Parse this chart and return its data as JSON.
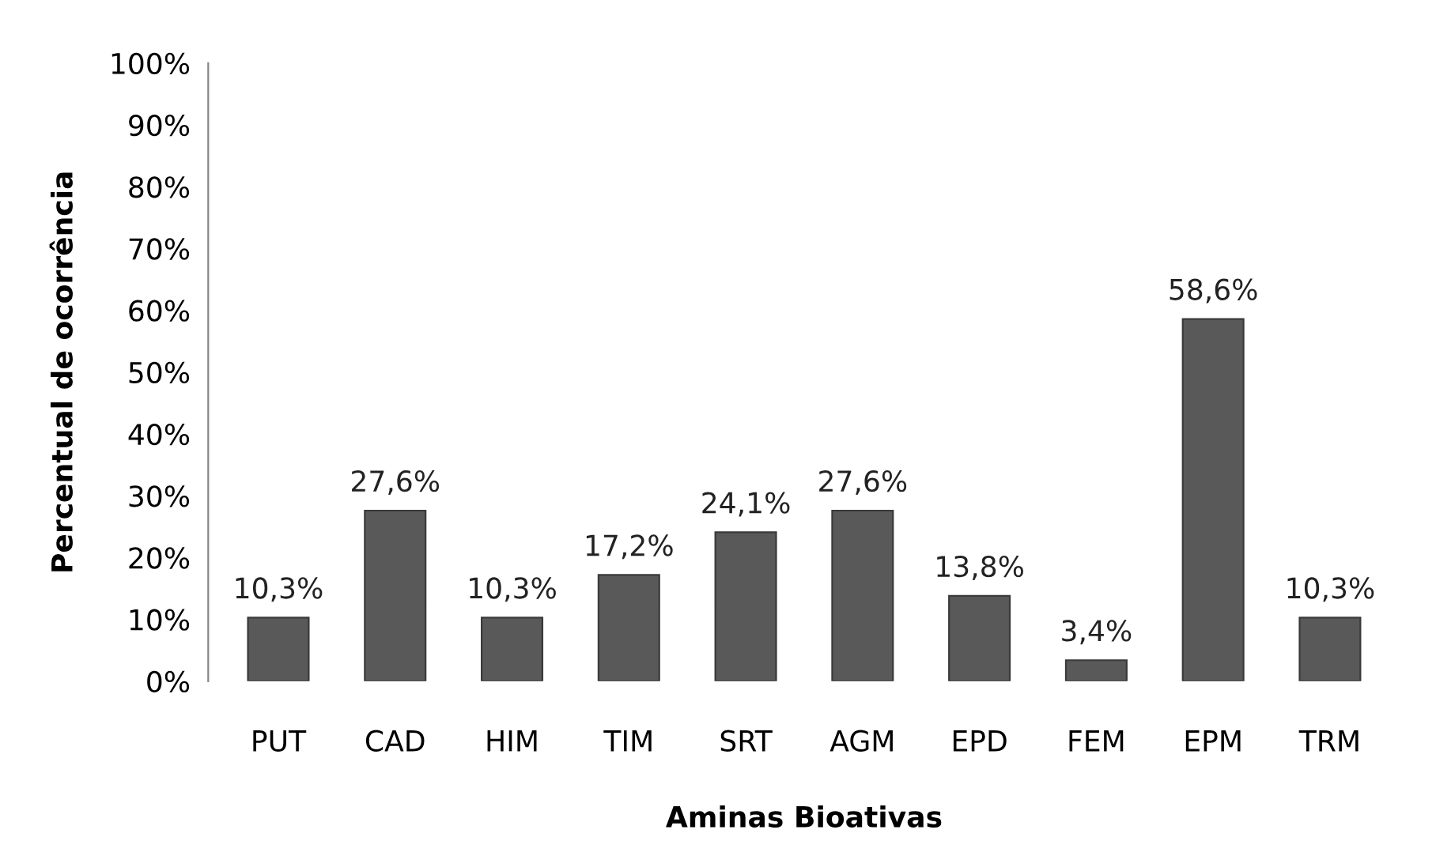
{
  "chart_data": {
    "type": "bar",
    "xlabel": "Aminas Bioativas",
    "ylabel": "Percentual de ocorrência",
    "categories": [
      "PUT",
      "CAD",
      "HIM",
      "TIM",
      "SRT",
      "AGM",
      "EPD",
      "FEM",
      "EPM",
      "TRM"
    ],
    "values": [
      10.3,
      27.6,
      10.3,
      17.2,
      24.1,
      27.6,
      13.8,
      3.4,
      58.6,
      10.3
    ],
    "value_labels": [
      "10,3%",
      "27,6%",
      "10,3%",
      "17,2%",
      "24,1%",
      "27,6%",
      "13,8%",
      "3,4%",
      "58,6%",
      "10,3%"
    ],
    "color": "#595959",
    "ylim": [
      0,
      100
    ],
    "yticks": [
      {
        "value": 0,
        "label": "0%"
      },
      {
        "value": 10,
        "label": "10%"
      },
      {
        "value": 20,
        "label": "20%"
      },
      {
        "value": 30,
        "label": "30%"
      },
      {
        "value": 40,
        "label": "40%"
      },
      {
        "value": 50,
        "label": "50%"
      },
      {
        "value": 60,
        "label": "60%"
      },
      {
        "value": 70,
        "label": "70%"
      },
      {
        "value": 80,
        "label": "80%"
      },
      {
        "value": 90,
        "label": "90%"
      },
      {
        "value": 100,
        "label": "100%"
      }
    ],
    "grid": false
  }
}
